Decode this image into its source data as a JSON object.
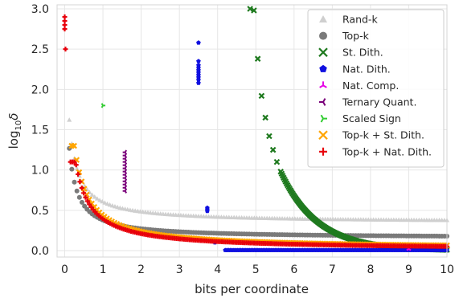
{
  "chart_data": {
    "type": "scatter",
    "xlabel": "bits per coordinate",
    "ylabel_base": "log",
    "ylabel_sub": "10",
    "ylabel_symbol": "δ",
    "xlim": [
      -0.2,
      10
    ],
    "ylim": [
      -0.08,
      3.05
    ],
    "xticks": [
      0,
      1,
      2,
      3,
      4,
      5,
      6,
      7,
      8,
      9,
      10
    ],
    "yticks": [
      0.0,
      0.5,
      1.0,
      1.5,
      2.0,
      2.5,
      3.0
    ],
    "ytick_labels": [
      "0.0",
      "0.5",
      "1.0",
      "1.5",
      "2.0",
      "2.5",
      "3.0"
    ],
    "grid": true,
    "legend_position": "top-right",
    "series": [
      {
        "name": "Rand-k",
        "marker": "triangle",
        "color": "#cfcfcf",
        "curve": {
          "kind": "power",
          "x0": 0.12,
          "x1": 10,
          "a": 0.35,
          "b": 0.8,
          "y_start": 2.45,
          "n": 150
        }
      },
      {
        "name": "Top-k",
        "marker": "circle",
        "color": "#7a7a7a",
        "curve": {
          "kind": "power",
          "x0": 0.12,
          "x1": 10,
          "a": 0.155,
          "b": 0.7,
          "y_start": 1.6,
          "n": 150
        }
      },
      {
        "name": "St. Dith.",
        "marker": "x",
        "color": "#1f7a1f",
        "points": [
          [
            4.85,
            3.0
          ],
          [
            4.95,
            2.98
          ],
          [
            5.05,
            2.38
          ],
          [
            5.15,
            1.92
          ],
          [
            5.25,
            1.65
          ],
          [
            5.35,
            1.42
          ],
          [
            5.45,
            1.25
          ],
          [
            5.55,
            1.1
          ]
        ],
        "curve": {
          "kind": "decay",
          "x0": 5.65,
          "x1": 10,
          "c": 0.98,
          "k": 1.05,
          "n": 170
        }
      },
      {
        "name": "Nat. Dith.",
        "marker": "pentagon",
        "color": "#1010e0",
        "points": [
          [
            3.5,
            2.58
          ],
          [
            3.5,
            2.35
          ],
          [
            3.5,
            2.3
          ],
          [
            3.5,
            2.27
          ],
          [
            3.5,
            2.24
          ],
          [
            3.5,
            2.21
          ],
          [
            3.5,
            2.18
          ],
          [
            3.5,
            2.15
          ],
          [
            3.5,
            2.12
          ],
          [
            3.5,
            2.08
          ],
          [
            3.73,
            0.53
          ],
          [
            3.73,
            0.51
          ],
          [
            3.73,
            0.49
          ],
          [
            3.93,
            0.1
          ]
        ],
        "curve": {
          "kind": "flat",
          "x0": 4.2,
          "x1": 10,
          "y": 0.005,
          "n": 130
        }
      },
      {
        "name": "Nat. Comp.",
        "marker": "tri_up",
        "color": "#e600e6",
        "points": [
          [
            9.0,
            0.05
          ],
          [
            9.0,
            0.02
          ]
        ]
      },
      {
        "name": "Ternary Quant.",
        "marker": "tri_left",
        "color": "#7a007a",
        "points": [
          [
            1.58,
            1.22
          ],
          [
            1.58,
            1.18
          ],
          [
            1.58,
            1.14
          ],
          [
            1.58,
            1.1
          ],
          [
            1.58,
            1.06
          ],
          [
            1.58,
            1.02
          ],
          [
            1.58,
            0.98
          ],
          [
            1.58,
            0.94
          ],
          [
            1.58,
            0.9
          ],
          [
            1.58,
            0.86
          ],
          [
            1.58,
            0.82
          ],
          [
            1.58,
            0.78
          ],
          [
            1.58,
            0.74
          ]
        ]
      },
      {
        "name": "Scaled Sign",
        "marker": "tri_right",
        "color": "#33cc33",
        "points": [
          [
            1.0,
            1.8
          ]
        ]
      },
      {
        "name": "Top-k + St. Dith.",
        "marker": "x",
        "color": "#ffa500",
        "curve": {
          "kind": "power",
          "x0": 0.18,
          "x1": 10,
          "a": 0.02,
          "b": 1.3,
          "y_start": 1.3,
          "n": 150
        }
      },
      {
        "name": "Top-k + Nat. Dith.",
        "marker": "plus",
        "color": "#e8000b",
        "points": [
          [
            0.0,
            2.9
          ],
          [
            0.0,
            2.85
          ],
          [
            0.0,
            2.8
          ],
          [
            0.0,
            2.75
          ],
          [
            0.02,
            2.5
          ]
        ],
        "curve": {
          "kind": "power",
          "x0": 0.15,
          "x1": 10,
          "a": 0.01,
          "b": 1.2,
          "y_start": 1.1,
          "n": 200
        }
      }
    ]
  }
}
